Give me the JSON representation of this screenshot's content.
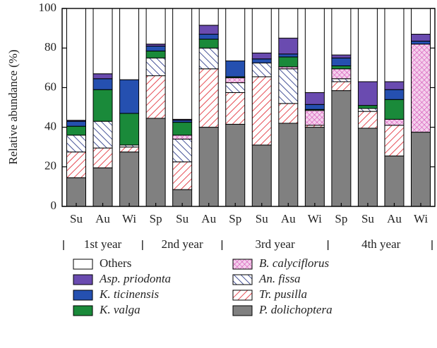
{
  "chart_data": {
    "type": "stacked_bar",
    "ylabel": "Relative abundance (%)",
    "categories": [
      "Su",
      "Au",
      "Wi",
      "Sp",
      "Su",
      "Au",
      "Sp",
      "Su",
      "Au",
      "Wi",
      "Sp",
      "Su",
      "Au",
      "Wi"
    ],
    "category_groups": [
      "1st year",
      "1st year",
      "1st year",
      "2nd year",
      "2nd year",
      "2nd year",
      "3rd year",
      "3rd year",
      "3rd year",
      "3rd year",
      "4th year",
      "4th year",
      "4th year",
      "4th year"
    ],
    "ylim": [
      0,
      100
    ],
    "yticks": [
      0,
      20,
      40,
      60,
      80,
      100
    ],
    "series": [
      {
        "name": "P. dolichoptera",
        "color": "#808080",
        "hatch": "none",
        "values": [
          14.5,
          19.5,
          27.5,
          44.5,
          8.5,
          40,
          41.5,
          31,
          42,
          40,
          58.5,
          39.5,
          25.5,
          37.5
        ]
      },
      {
        "name": "Tr. pusilla",
        "color": "#e0202a",
        "hatch": "/",
        "values": [
          13,
          10,
          2.5,
          21.5,
          14,
          29.5,
          16,
          34.5,
          10,
          1,
          4.5,
          8.5,
          15.5,
          0
        ]
      },
      {
        "name": "An. fissa",
        "color": "#1a2a80",
        "hatch": "\\",
        "values": [
          8.5,
          13.5,
          1,
          9,
          11.5,
          10.5,
          5,
          7,
          17.5,
          0,
          1.5,
          1.5,
          0,
          0
        ]
      },
      {
        "name": "B. calyciflorus",
        "color": "#d040b0",
        "hatch": "x",
        "values": [
          0,
          0,
          0,
          0,
          2,
          0,
          2.5,
          0,
          1,
          7.5,
          5,
          0,
          3,
          44.5
        ]
      },
      {
        "name": "K. valga",
        "color": "#1a8a3a",
        "hatch": "none",
        "values": [
          4.5,
          16,
          16,
          3.5,
          6.5,
          4.5,
          0.5,
          0,
          5,
          0.5,
          1.5,
          1.5,
          10,
          0
        ]
      },
      {
        "name": "K. ticinensis",
        "color": "#2550b0",
        "hatch": "none",
        "values": [
          2.5,
          5.5,
          17,
          2.5,
          1,
          2.5,
          8,
          2,
          1.5,
          2.5,
          4,
          0,
          5,
          1.5
        ]
      },
      {
        "name": "Asp. priodonta",
        "color": "#6a4bb0",
        "hatch": "none",
        "values": [
          0.5,
          2.5,
          0,
          1,
          0.5,
          4.5,
          0,
          3,
          8,
          6,
          1.5,
          12,
          4,
          3.5
        ]
      },
      {
        "name": "Others",
        "color": "#ffffff",
        "hatch": "none",
        "values": [
          56.5,
          33,
          36,
          18,
          56,
          8.5,
          26.5,
          22.5,
          15,
          42.5,
          23.5,
          37,
          37,
          13
        ]
      }
    ]
  }
}
